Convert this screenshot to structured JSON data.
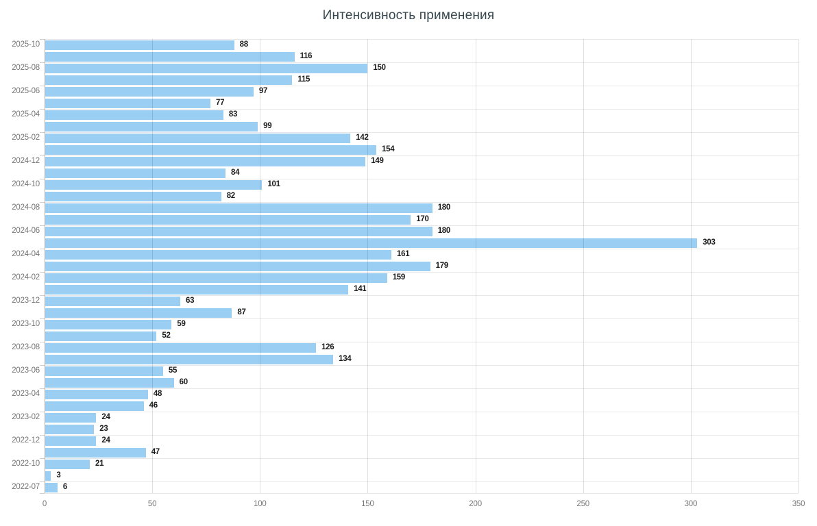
{
  "chart_data": {
    "type": "bar",
    "orientation": "horizontal",
    "title": "Интенсивность применения",
    "xlabel": "",
    "ylabel": "",
    "xlim": [
      0,
      350
    ],
    "x_ticks": [
      0,
      50,
      100,
      150,
      200,
      250,
      300,
      350
    ],
    "grid": "on",
    "legend": "none",
    "y_axis_label_interval": 2,
    "bars": [
      {
        "label": "2025-10",
        "value": 88
      },
      {
        "label": "",
        "value": 116
      },
      {
        "label": "2025-08",
        "value": 150
      },
      {
        "label": "",
        "value": 115
      },
      {
        "label": "2025-06",
        "value": 97
      },
      {
        "label": "",
        "value": 77
      },
      {
        "label": "2025-04",
        "value": 83
      },
      {
        "label": "",
        "value": 99
      },
      {
        "label": "2025-02",
        "value": 142
      },
      {
        "label": "",
        "value": 154
      },
      {
        "label": "2024-12",
        "value": 149
      },
      {
        "label": "",
        "value": 84
      },
      {
        "label": "2024-10",
        "value": 101
      },
      {
        "label": "",
        "value": 82
      },
      {
        "label": "2024-08",
        "value": 180
      },
      {
        "label": "",
        "value": 170
      },
      {
        "label": "2024-06",
        "value": 180
      },
      {
        "label": "",
        "value": 303
      },
      {
        "label": "2024-04",
        "value": 161
      },
      {
        "label": "",
        "value": 179
      },
      {
        "label": "2024-02",
        "value": 159
      },
      {
        "label": "",
        "value": 141
      },
      {
        "label": "2023-12",
        "value": 63
      },
      {
        "label": "",
        "value": 87
      },
      {
        "label": "2023-10",
        "value": 59
      },
      {
        "label": "",
        "value": 52
      },
      {
        "label": "2023-08",
        "value": 126
      },
      {
        "label": "",
        "value": 134
      },
      {
        "label": "2023-06",
        "value": 55
      },
      {
        "label": "",
        "value": 60
      },
      {
        "label": "2023-04",
        "value": 48
      },
      {
        "label": "",
        "value": 46
      },
      {
        "label": "2023-02",
        "value": 24
      },
      {
        "label": "",
        "value": 23
      },
      {
        "label": "2022-12",
        "value": 24
      },
      {
        "label": "",
        "value": 47
      },
      {
        "label": "2022-10",
        "value": 21
      },
      {
        "label": "",
        "value": 3
      },
      {
        "label": "2022-07",
        "value": 6
      }
    ]
  },
  "colors": {
    "bar": "#9acff3",
    "title": "#37474f",
    "axis_label": "#757575",
    "value_label": "#1b1b1b",
    "grid_vertical": "rgba(0,0,0,0.12)",
    "grid_horizontal": "rgba(0,0,0,0.09)",
    "axis_line": "#b5b5b5"
  }
}
